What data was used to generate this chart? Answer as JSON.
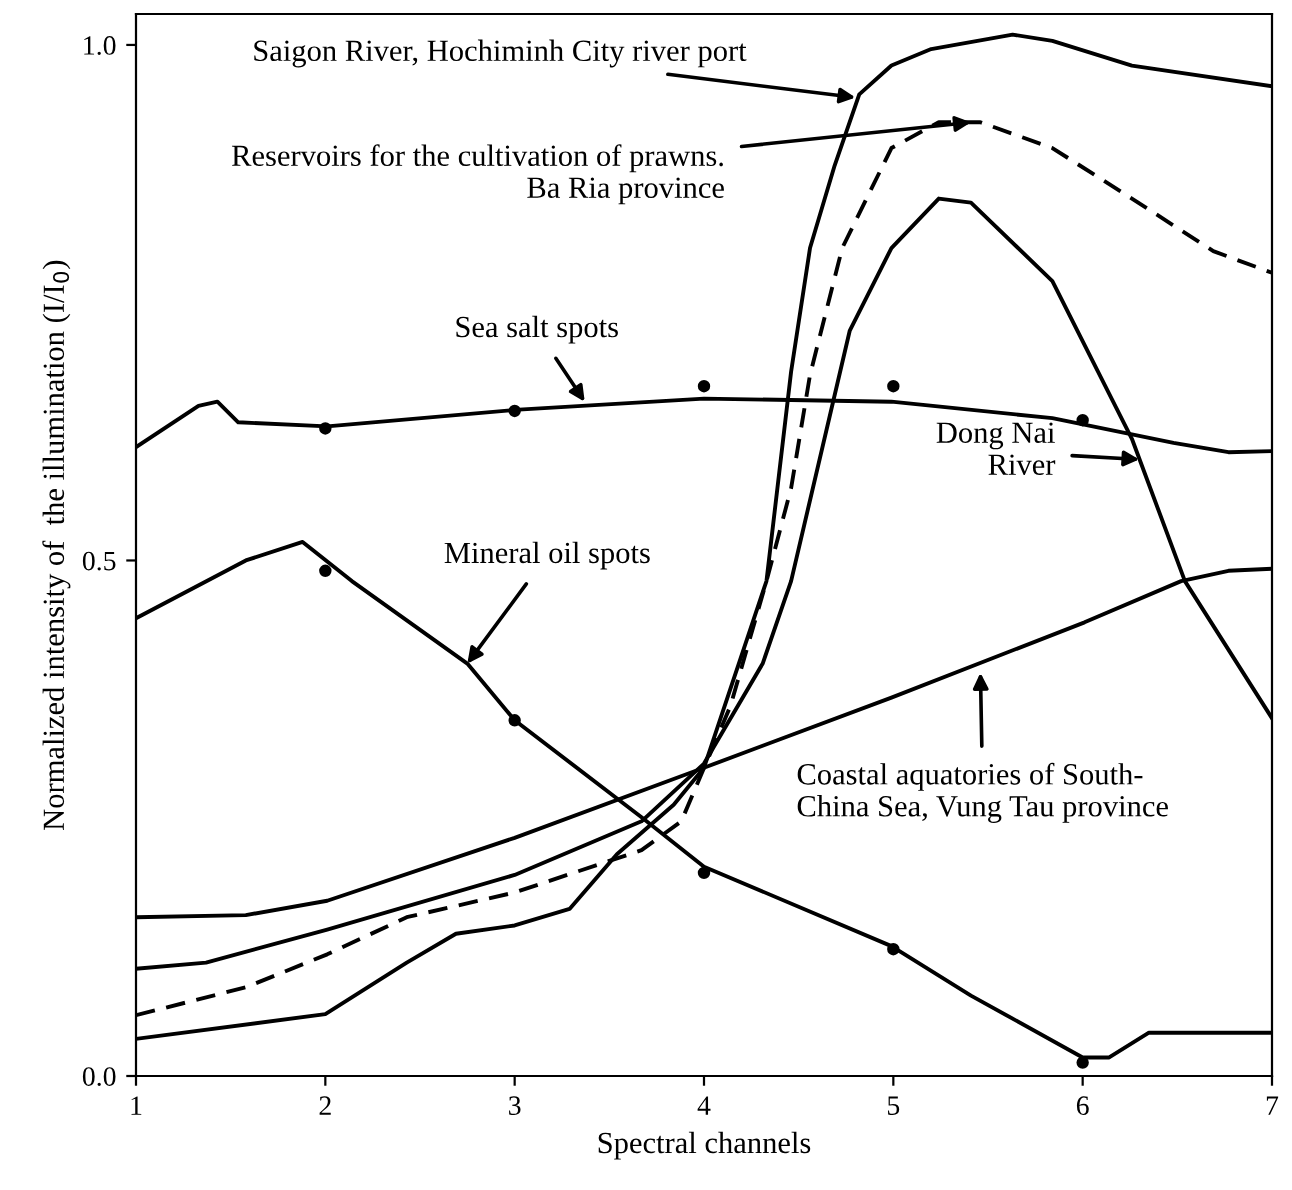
{
  "chart_data": {
    "type": "line",
    "xlabel": "Spectral channels",
    "ylabel": "Normalized intensity of  the illumination (I/I$_{0}$)",
    "xlim": [
      1,
      7
    ],
    "xticks": [
      1,
      2,
      3,
      4,
      5,
      6,
      7
    ],
    "ylim": [
      0,
      1.03
    ],
    "yticks": [
      {
        "value": 0,
        "label": "0.0"
      },
      0.5,
      {
        "value": 1,
        "label": "1.0"
      }
    ],
    "grid": false,
    "series": [
      {
        "color": "#000000",
        "line_style": "solid",
        "x": [
          1,
          2,
          2.43,
          2.69,
          3,
          3.29,
          3.54,
          3.84,
          4,
          4.33,
          4.46,
          4.56,
          4.69,
          4.82,
          4.99,
          5.2,
          5.63,
          5.84,
          6.26,
          7
        ],
        "values": [
          0.036,
          0.06,
          0.11,
          0.138,
          0.146,
          0.162,
          0.215,
          0.263,
          0.299,
          0.48,
          0.683,
          0.803,
          0.883,
          0.952,
          0.98,
          0.996,
          1.01,
          1.004,
          0.98,
          0.96
        ]
      },
      {
        "color": "#000000",
        "line_style": "dashed",
        "x": [
          1,
          1.58,
          2.01,
          2.43,
          3,
          3.67,
          3.88,
          4.14,
          4.33,
          4.46,
          4.56,
          4.73,
          4.99,
          5.24,
          5.46,
          5.84,
          6.26,
          6.69,
          7
        ],
        "values": [
          0.059,
          0.086,
          0.118,
          0.154,
          0.178,
          0.219,
          0.247,
          0.359,
          0.48,
          0.57,
          0.68,
          0.803,
          0.9,
          0.925,
          0.925,
          0.9,
          0.851,
          0.8,
          0.779
        ]
      },
      {
        "color": "#000000",
        "line_style": "solid",
        "x": [
          1,
          1.37,
          2.01,
          3,
          3.67,
          4,
          4.31,
          4.46,
          4.77,
          4.99,
          5.24,
          5.41,
          5.84,
          6.26,
          6.54,
          7
        ],
        "values": [
          0.104,
          0.11,
          0.142,
          0.195,
          0.247,
          0.303,
          0.4,
          0.48,
          0.723,
          0.803,
          0.851,
          0.847,
          0.771,
          0.618,
          0.48,
          0.347
        ]
      },
      {
        "color": "#000000",
        "line_style": "solid",
        "x": [
          1,
          1.58,
          2.01,
          3,
          4,
          4.99,
          6.01,
          6.52,
          6.77,
          7
        ],
        "values": [
          0.154,
          0.156,
          0.17,
          0.231,
          0.299,
          0.367,
          0.44,
          0.48,
          0.49,
          0.492
        ]
      },
      {
        "color": "#000000",
        "line_style": "solid",
        "x": [
          1,
          1.33,
          1.43,
          1.54,
          2.01,
          3,
          4,
          4.99,
          5.84,
          6.48,
          6.77,
          7
        ],
        "values": [
          0.61,
          0.65,
          0.654,
          0.634,
          0.63,
          0.646,
          0.657,
          0.654,
          0.638,
          0.614,
          0.605,
          0.606
        ]
      },
      {
        "color": "#000000",
        "line_style": "solid",
        "x": [
          1,
          1.58,
          1.88,
          2.14,
          2.75,
          3,
          3.67,
          4,
          4.99,
          5.41,
          6,
          6.14,
          6.35,
          7
        ],
        "values": [
          0.444,
          0.5,
          0.518,
          0.48,
          0.4,
          0.345,
          0.251,
          0.203,
          0.126,
          0.078,
          0.018,
          0.018,
          0.042,
          0.042
        ]
      },
      {
        "type": "scatter",
        "marker": "circle",
        "color": "#000000",
        "x": [
          2,
          3,
          4,
          5,
          6
        ],
        "values": [
          0.628,
          0.645,
          0.669,
          0.669,
          0.636
        ]
      },
      {
        "type": "scatter",
        "marker": "circle",
        "color": "#000000",
        "x": [
          2,
          3,
          4,
          5,
          6
        ],
        "values": [
          0.49,
          0.345,
          0.197,
          0.123,
          0.013
        ]
      }
    ],
    "annotations": [
      {
        "text": "Saigon River, Hochiminh City river port",
        "x": 4.8,
        "y": 0.949
      },
      {
        "text": "Reservoirs for the cultivation of prawns.\nBa Ria province",
        "x": 5.41,
        "y": 0.925
      },
      {
        "text": "Sea salt spots",
        "x": 3.37,
        "y": 0.654
      },
      {
        "text": "Dong Nai\nRiver",
        "x": 6.3,
        "y": 0.598
      },
      {
        "text": "Mineral oil spots",
        "x": 2.75,
        "y": 0.4
      },
      {
        "text": "Coastal aquatories of South-\nChina Sea, Vung Tau province",
        "x": 5.46,
        "y": 0.391
      }
    ]
  }
}
